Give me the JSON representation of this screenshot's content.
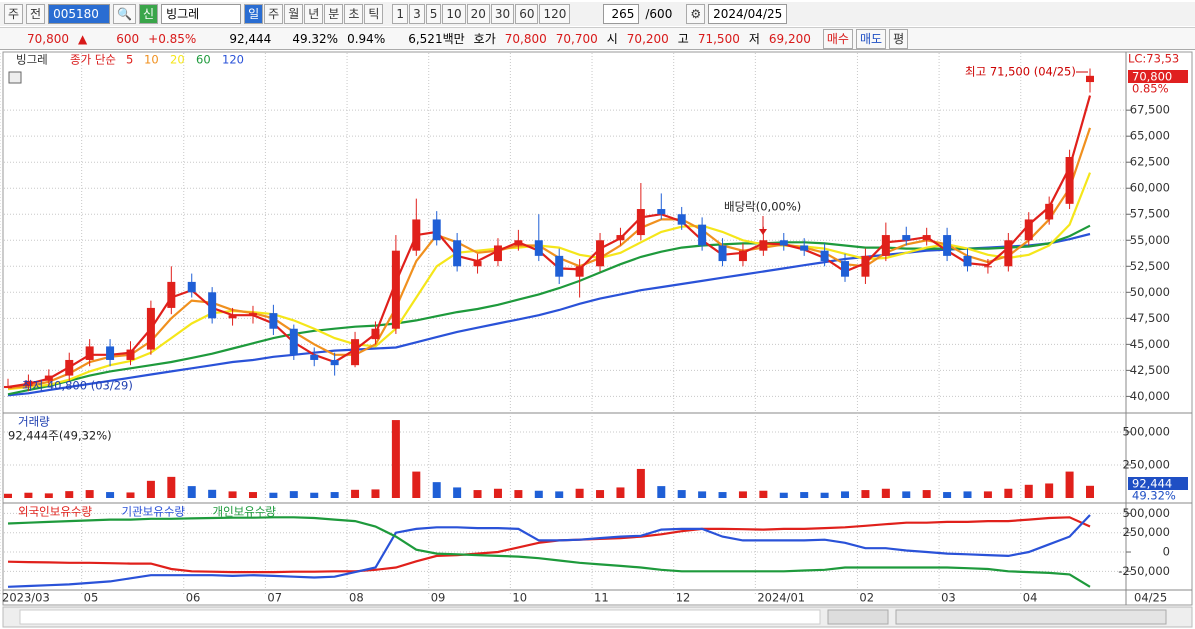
{
  "toolbar": {
    "period": "주",
    "prev": "전",
    "code": "005180",
    "badge": "신",
    "name": "빙그레",
    "intervals": [
      "일",
      "주",
      "월",
      "년",
      "분",
      "초",
      "틱"
    ],
    "multipliers": [
      "1",
      "3",
      "5",
      "10",
      "20",
      "30",
      "60",
      "120"
    ],
    "count": "265",
    "max": "/600",
    "date": "2024/04/25"
  },
  "info_bar": {
    "price": "70,800",
    "arrow": "▲",
    "change": "600",
    "change_pct": "+0.85%",
    "volume": "92,444",
    "volume_ratio": "49.32%",
    "turnover": "0.94%",
    "amount": "6,521백만",
    "quote_label": "호가",
    "ask": "70,800",
    "bid": "70,700",
    "open_label": "시",
    "open": "70,200",
    "high_label": "고",
    "high": "71,500",
    "low_label": "저",
    "low": "69,200",
    "buy": "매수",
    "sell": "매도",
    "avg": "평"
  },
  "chart_data": [
    {
      "type": "candlestick",
      "title": "빙그레",
      "ma_label": "종가 단순",
      "high_label": "최고 71,500 (04/25)",
      "low_label": "최저 40,800 (03/29)",
      "event_label": "배당락(0,00%)",
      "lc_label": "LC:73,53",
      "last_label": "70,800",
      "change_label": "0.85%",
      "up_color": "#e0201b",
      "down_color": "#1f5fd6",
      "categories": [
        "2023/03",
        null,
        null,
        null,
        "05",
        null,
        null,
        null,
        null,
        "06",
        null,
        null,
        null,
        "07",
        null,
        null,
        null,
        "08",
        null,
        null,
        null,
        "09",
        null,
        null,
        null,
        "10",
        null,
        null,
        null,
        "11",
        null,
        null,
        null,
        "12",
        null,
        null,
        null,
        "2024/01",
        null,
        null,
        null,
        null,
        "02",
        null,
        null,
        null,
        "03",
        null,
        null,
        null,
        "04",
        null,
        null,
        "04/25"
      ],
      "open": [
        40800,
        41000,
        41500,
        42000,
        43500,
        44800,
        43500,
        44500,
        48500,
        51000,
        50000,
        47500,
        47800,
        48000,
        46500,
        44000,
        43500,
        43000,
        45500,
        46500,
        54000,
        57000,
        55000,
        52500,
        53000,
        54500,
        55000,
        53500,
        51500,
        52500,
        55000,
        55500,
        58000,
        57500,
        56500,
        54500,
        53000,
        54000,
        55000,
        54500,
        54000,
        53000,
        51500,
        53500,
        55500,
        55000,
        55500,
        53500,
        52500,
        52500,
        55000,
        57000,
        58500,
        70200
      ],
      "high": [
        41700,
        42100,
        42600,
        44200,
        45500,
        45500,
        45300,
        49200,
        52500,
        51800,
        50500,
        48500,
        48700,
        48800,
        46900,
        44700,
        44200,
        46200,
        47200,
        55500,
        59000,
        57800,
        55700,
        53700,
        55200,
        56000,
        57500,
        54200,
        53200,
        55700,
        56200,
        60500,
        59500,
        58200,
        57200,
        55200,
        54700,
        56300,
        55700,
        55200,
        54700,
        53700,
        54200,
        56700,
        56300,
        56200,
        56200,
        54200,
        53200,
        55700,
        57700,
        59200,
        63700,
        71500
      ],
      "low": [
        40800,
        40500,
        41000,
        41500,
        42900,
        42900,
        43000,
        44000,
        47900,
        49500,
        47000,
        46800,
        47000,
        45900,
        43500,
        42900,
        42000,
        42800,
        45000,
        46000,
        53500,
        54500,
        52000,
        51800,
        52500,
        54000,
        53000,
        50800,
        49500,
        52000,
        54500,
        55000,
        57000,
        56000,
        54000,
        52500,
        52500,
        53500,
        54000,
        53500,
        52500,
        51000,
        50800,
        53000,
        54500,
        54500,
        53000,
        52000,
        51800,
        52000,
        54500,
        56500,
        58000,
        69200
      ],
      "close": [
        41000,
        41500,
        42000,
        43500,
        44800,
        43500,
        44500,
        48500,
        51000,
        50000,
        47500,
        47800,
        48000,
        46500,
        44000,
        43500,
        43000,
        45500,
        46500,
        54000,
        57000,
        55000,
        52500,
        53000,
        54500,
        55000,
        53500,
        51500,
        52500,
        55000,
        55500,
        58000,
        57500,
        56500,
        54500,
        53000,
        54000,
        55000,
        54500,
        54000,
        53000,
        51500,
        53500,
        55500,
        55000,
        55500,
        53500,
        52500,
        52500,
        55000,
        57000,
        58500,
        63000,
        70800
      ],
      "series": [
        {
          "name": "5",
          "color": "#e0201b",
          "values": [
            40900,
            41200,
            41700,
            42800,
            44000,
            44000,
            44200,
            46500,
            49500,
            50200,
            48500,
            47800,
            47800,
            47000,
            45200,
            44000,
            43300,
            44500,
            46000,
            51000,
            55500,
            55800,
            53500,
            53000,
            54000,
            54800,
            54000,
            52300,
            52200,
            54200,
            55200,
            57200,
            57500,
            56800,
            55000,
            53600,
            53800,
            54700,
            54600,
            54100,
            53300,
            52000,
            52800,
            54800,
            55000,
            55300,
            54000,
            52800,
            52600,
            54300,
            56500,
            58200,
            62000,
            68900
          ]
        },
        {
          "name": "10",
          "color": "#f0901e",
          "values": [
            40800,
            41000,
            41400,
            42200,
            43300,
            43800,
            44000,
            45300,
            47500,
            49200,
            49000,
            48300,
            48000,
            47500,
            46200,
            45000,
            44000,
            44000,
            45000,
            48500,
            53000,
            55500,
            54800,
            53800,
            54000,
            54500,
            54500,
            53300,
            52500,
            53300,
            54500,
            56200,
            57000,
            57000,
            56000,
            54500,
            54000,
            54300,
            54600,
            54300,
            53800,
            52700,
            52500,
            53800,
            54600,
            55000,
            54600,
            53500,
            52900,
            53500,
            55000,
            57000,
            60000,
            65800
          ]
        },
        {
          "name": "20",
          "color": "#f5e61a",
          "values": [
            40700,
            40900,
            41100,
            41600,
            42400,
            43000,
            43400,
            44200,
            45600,
            47000,
            48000,
            48200,
            48100,
            47900,
            47300,
            46500,
            45600,
            45000,
            44800,
            46500,
            49500,
            52500,
            53800,
            54000,
            54200,
            54300,
            54500,
            54300,
            53600,
            53300,
            53800,
            54800,
            55800,
            56300,
            56400,
            55800,
            55000,
            54600,
            54500,
            54400,
            54200,
            53700,
            53200,
            53300,
            53800,
            54300,
            54600,
            54200,
            53600,
            53300,
            53600,
            54500,
            56500,
            61500
          ]
        },
        {
          "name": "60",
          "color": "#1e9a3c",
          "values": [
            40200,
            40600,
            41000,
            41500,
            42000,
            42400,
            42700,
            43000,
            43300,
            43700,
            44100,
            44600,
            45100,
            45600,
            46000,
            46300,
            46500,
            46700,
            46800,
            47000,
            47300,
            47700,
            48100,
            48400,
            48800,
            49300,
            49800,
            50400,
            51100,
            51900,
            52700,
            53400,
            53900,
            54300,
            54500,
            54600,
            54700,
            54700,
            54800,
            54800,
            54700,
            54500,
            54300,
            54300,
            54200,
            54200,
            54200,
            54200,
            54200,
            54300,
            54400,
            54700,
            55400,
            56400
          ]
        },
        {
          "name": "120",
          "color": "#2a52d8",
          "values": [
            40100,
            40300,
            40600,
            40900,
            41200,
            41500,
            41800,
            42100,
            42400,
            42700,
            43000,
            43300,
            43500,
            43800,
            44000,
            44200,
            44400,
            44500,
            44600,
            44700,
            45200,
            45700,
            46200,
            46600,
            47000,
            47400,
            47800,
            48300,
            48900,
            49400,
            49800,
            50200,
            50500,
            50800,
            51100,
            51400,
            51700,
            52000,
            52300,
            52600,
            52900,
            53200,
            53400,
            53600,
            53800,
            54000,
            54100,
            54200,
            54300,
            54400,
            54500,
            54700,
            55100,
            55600
          ]
        }
      ],
      "ylim": [
        38500,
        72800
      ],
      "yticks": [
        {
          "value": 40000,
          "label": "40,000"
        },
        {
          "value": 42500,
          "label": "42,500"
        },
        {
          "value": 45000,
          "label": "45,000"
        },
        {
          "value": 47500,
          "label": "47,500"
        },
        {
          "value": 50000,
          "label": "50,000"
        },
        {
          "value": 52500,
          "label": "52,500"
        },
        {
          "value": 55000,
          "label": "55,000"
        },
        {
          "value": 57500,
          "label": "57,500"
        },
        {
          "value": 60000,
          "label": "60,000"
        },
        {
          "value": 62500,
          "label": "62,500"
        },
        {
          "value": 65000,
          "label": "65,000"
        },
        {
          "value": 67500,
          "label": "67,500"
        }
      ],
      "grid": true
    },
    {
      "type": "bar",
      "title": "거래량",
      "subtitle": "92,444주(49,32%)",
      "last_label": "92,444",
      "ratio_label": "49.32%",
      "values": [
        32000,
        40000,
        35000,
        52000,
        60000,
        45000,
        42000,
        130000,
        160000,
        90000,
        62000,
        50000,
        45000,
        40000,
        52000,
        40000,
        45000,
        62000,
        65000,
        590000,
        200000,
        120000,
        80000,
        60000,
        70000,
        60000,
        55000,
        50000,
        70000,
        60000,
        80000,
        220000,
        90000,
        60000,
        50000,
        45000,
        50000,
        55000,
        40000,
        45000,
        40000,
        50000,
        60000,
        70000,
        50000,
        60000,
        45000,
        50000,
        50000,
        70000,
        100000,
        110000,
        200000,
        92444
      ],
      "ylim": [
        0,
        636000
      ],
      "yticks": [
        {
          "value": 250000,
          "label": "250,000"
        },
        {
          "value": 500000,
          "label": "500,000"
        }
      ],
      "grid": true
    },
    {
      "type": "line",
      "series": [
        {
          "name": "외국인보유수량",
          "color": "#e0201b",
          "values": [
            -125000,
            -130000,
            -135000,
            -140000,
            -140000,
            -145000,
            -150000,
            -150000,
            -220000,
            -250000,
            -255000,
            -260000,
            -260000,
            -260000,
            -255000,
            -255000,
            -250000,
            -250000,
            -230000,
            -200000,
            -120000,
            -50000,
            -40000,
            -20000,
            0,
            60000,
            120000,
            150000,
            160000,
            170000,
            180000,
            200000,
            230000,
            270000,
            300000,
            300000,
            295000,
            290000,
            300000,
            300000,
            310000,
            320000,
            340000,
            360000,
            380000,
            380000,
            390000,
            390000,
            400000,
            400000,
            420000,
            440000,
            450000,
            330000
          ]
        },
        {
          "name": "기관보유수량",
          "color": "#2a52d8",
          "values": [
            -450000,
            -440000,
            -430000,
            -420000,
            -400000,
            -380000,
            -340000,
            -300000,
            -300000,
            -300000,
            -300000,
            -310000,
            -300000,
            -310000,
            -320000,
            -330000,
            -320000,
            -260000,
            -200000,
            250000,
            300000,
            320000,
            320000,
            310000,
            310000,
            300000,
            150000,
            150000,
            160000,
            180000,
            200000,
            210000,
            290000,
            300000,
            300000,
            200000,
            150000,
            150000,
            150000,
            150000,
            160000,
            120000,
            50000,
            50000,
            20000,
            0,
            -20000,
            -30000,
            -40000,
            -50000,
            0,
            100000,
            200000,
            480000
          ]
        },
        {
          "name": "개인보유수량",
          "color": "#1e9a3c",
          "values": [
            370000,
            380000,
            390000,
            400000,
            410000,
            420000,
            420000,
            430000,
            430000,
            435000,
            440000,
            445000,
            445000,
            450000,
            450000,
            440000,
            420000,
            400000,
            330000,
            200000,
            30000,
            -20000,
            -30000,
            -40000,
            -50000,
            -60000,
            -80000,
            -110000,
            -140000,
            -160000,
            -180000,
            -200000,
            -230000,
            -250000,
            -250000,
            -250000,
            -250000,
            -250000,
            -250000,
            -240000,
            -230000,
            -200000,
            -200000,
            -200000,
            -200000,
            -200000,
            -200000,
            -210000,
            -220000,
            -250000,
            -260000,
            -270000,
            -290000,
            -450000
          ]
        }
      ],
      "ylim": [
        -492000,
        609000
      ],
      "yticks": [
        {
          "value": 500000,
          "label": "500,000"
        },
        {
          "value": 250000,
          "label": "250,000"
        },
        0,
        {
          "value": -250000,
          "label": "-250,000"
        }
      ],
      "grid": true
    }
  ]
}
